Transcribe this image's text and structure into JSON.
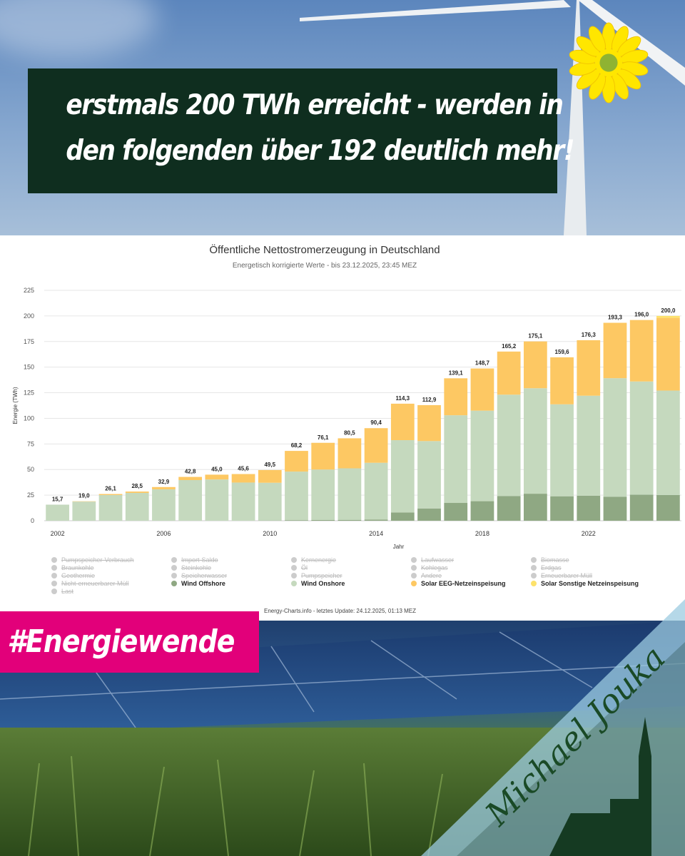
{
  "header": {
    "headline_line1": "erstmals 200 TWh erreicht - werden in",
    "headline_line2": "den folgenden über 192 deutlich mehr!"
  },
  "hashtag": "#Energiewende",
  "signature": "Michael Jouka",
  "chart_data": {
    "type": "bar",
    "title": "Öffentliche Nettostromerzeugung in Deutschland",
    "subtitle": "Energetisch korrigierte Werte - bis 23.12.2025, 23:45 MEZ",
    "ylabel": "Energie (TWh)",
    "xlabel": "Jahr",
    "ylim": [
      0,
      225
    ],
    "yticks": [
      0,
      25,
      50,
      75,
      100,
      125,
      150,
      175,
      200,
      225
    ],
    "categories": [
      "2002",
      "2003",
      "2004",
      "2005",
      "2006",
      "2007",
      "2008",
      "2009",
      "2010",
      "2011",
      "2012",
      "2013",
      "2014",
      "2015",
      "2016",
      "2017",
      "2018",
      "2019",
      "2020",
      "2021",
      "2022",
      "2023",
      "2024",
      "2025"
    ],
    "xtick_labels": [
      "2002",
      "2006",
      "2010",
      "2014",
      "2018",
      "2022"
    ],
    "totals_labels": [
      "15,7",
      "19,0",
      "26,1",
      "28,5",
      "32,9",
      "42,8",
      "45,0",
      "45,6",
      "49,5",
      "68,2",
      "76,1",
      "80,5",
      "90,4",
      "114,3",
      "112,9",
      "139,1",
      "148,7",
      "165,2",
      "175,1",
      "159,6",
      "176,3",
      "193,3",
      "196,0",
      "200,0"
    ],
    "series": [
      {
        "name": "Wind Offshore",
        "color": "#8fa883",
        "values": [
          0,
          0,
          0,
          0,
          0,
          0,
          0,
          0,
          0.2,
          0.6,
          0.7,
          0.9,
          1.2,
          8.1,
          12.0,
          17.4,
          19.1,
          24.2,
          26.4,
          23.9,
          24.5,
          23.5,
          25.4,
          25.1
        ]
      },
      {
        "name": "Wind Onshore",
        "color": "#c5d9be",
        "values": [
          15.7,
          18.7,
          25.1,
          27.2,
          30.7,
          39.7,
          40.3,
          37.3,
          36.9,
          47.4,
          49.3,
          50.3,
          55.4,
          70.6,
          65.8,
          85.6,
          88.4,
          98.9,
          103.0,
          89.8,
          97.6,
          115.7,
          110.6,
          102.0
        ]
      },
      {
        "name": "Solar EEG-Netzeinspeisung",
        "color": "#fdc863",
        "values": [
          0,
          0.3,
          1.0,
          1.3,
          2.2,
          3.1,
          4.7,
          8.3,
          12.4,
          20.2,
          26.1,
          29.3,
          33.8,
          35.6,
          35.1,
          36.1,
          41.2,
          42.1,
          45.7,
          45.9,
          54.2,
          54.1,
          60.0,
          71.0
        ]
      },
      {
        "name": "Solar Sonstige Netzeinspeisung",
        "color": "#fde26b",
        "values": [
          0,
          0,
          0,
          0,
          0,
          0,
          0,
          0,
          0,
          0,
          0,
          0,
          0,
          0,
          0,
          0,
          0,
          0,
          0,
          0,
          0,
          0,
          0,
          1.9
        ]
      }
    ],
    "legend": [
      {
        "label": "Pumpspeicher-Verbrauch",
        "active": false
      },
      {
        "label": "Import-Saldo",
        "active": false
      },
      {
        "label": "Kernenergie",
        "active": false
      },
      {
        "label": "Laufwasser",
        "active": false
      },
      {
        "label": "Biomasse",
        "active": false
      },
      {
        "label": "Braunkohle",
        "active": false
      },
      {
        "label": "Steinkohle",
        "active": false
      },
      {
        "label": "Öl",
        "active": false
      },
      {
        "label": "Kohlegas",
        "active": false
      },
      {
        "label": "Erdgas",
        "active": false
      },
      {
        "label": "Geothermie",
        "active": false
      },
      {
        "label": "Speicherwasser",
        "active": false
      },
      {
        "label": "Pumpspeicher",
        "active": false
      },
      {
        "label": "Andere",
        "active": false
      },
      {
        "label": "Erneuerbarer Müll",
        "active": false
      },
      {
        "label": "Nicht-erneuerbarer Müll",
        "active": false
      },
      {
        "label": "Wind Offshore",
        "active": true,
        "color": "#8fa883"
      },
      {
        "label": "Wind Onshore",
        "active": true,
        "color": "#c5d9be"
      },
      {
        "label": "Solar EEG-Netzeinspeisung",
        "active": true,
        "color": "#fdc863"
      },
      {
        "label": "Solar Sonstige Netzeinspeisung",
        "active": true,
        "color": "#fde26b"
      },
      {
        "label": "Last",
        "active": false
      }
    ],
    "legend_placement": "bottom",
    "grid": true,
    "credits": "Energy-Charts.info - letztes Update: 24.12.2025, 01:13 MEZ"
  }
}
